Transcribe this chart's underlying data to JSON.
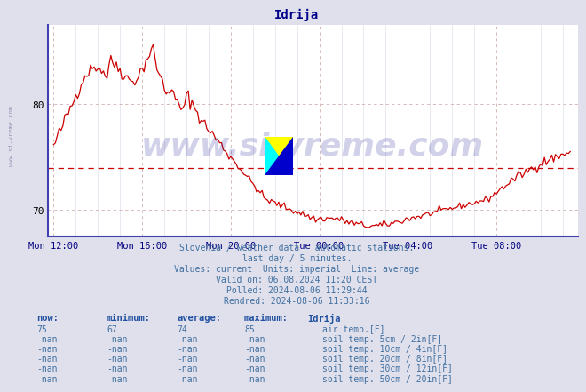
{
  "title": "Idrija",
  "title_color": "#00008B",
  "bg_color": "#e0e0ec",
  "plot_bg_color": "#ffffff",
  "line_color": "#cc0000",
  "axis_color": "#4040b0",
  "average_line_value": 74,
  "average_line_color": "#cc0000",
  "ylim_min": 67.5,
  "ylim_max": 87.5,
  "yticks": [
    70,
    80
  ],
  "xtick_labels": [
    "Mon 12:00",
    "Mon 16:00",
    "Mon 20:00",
    "Tue 00:00",
    "Tue 04:00",
    "Tue 08:00"
  ],
  "xtick_positions": [
    0,
    48,
    96,
    144,
    192,
    240
  ],
  "n_points": 281,
  "watermark_text": "www.si-vreme.com",
  "watermark_color": "#00008B",
  "watermark_alpha": 0.18,
  "info_lines": [
    "Slovenia / weather data - automatic stations.",
    "last day / 5 minutes.",
    "Values: current  Units: imperial  Line: average",
    "Valid on: 06.08.2024 11:20 CEST",
    "Polled: 2024-08-06 11:29:44",
    "Rendred: 2024-08-06 11:33:16"
  ],
  "info_color": "#4070a0",
  "table_headers": [
    "now:",
    "minimum:",
    "average:",
    "maximum:",
    "Idrija"
  ],
  "table_rows": [
    {
      "now": "75",
      "minimum": "67",
      "average": "74",
      "maximum": "85",
      "color": "#cc0000",
      "label": "air temp.[F]"
    },
    {
      "now": "-nan",
      "minimum": "-nan",
      "average": "-nan",
      "maximum": "-nan",
      "color": "#c89090",
      "label": "soil temp. 5cm / 2in[F]"
    },
    {
      "now": "-nan",
      "minimum": "-nan",
      "average": "-nan",
      "maximum": "-nan",
      "color": "#c87820",
      "label": "soil temp. 10cm / 4in[F]"
    },
    {
      "now": "-nan",
      "minimum": "-nan",
      "average": "-nan",
      "maximum": "-nan",
      "color": "#b07810",
      "label": "soil temp. 20cm / 8in[F]"
    },
    {
      "now": "-nan",
      "minimum": "-nan",
      "average": "-nan",
      "maximum": "-nan",
      "color": "#607040",
      "label": "soil temp. 30cm / 12in[F]"
    },
    {
      "now": "-nan",
      "minimum": "-nan",
      "average": "-nan",
      "maximum": "-nan",
      "color": "#7a3808",
      "label": "soil temp. 50cm / 20in[F]"
    }
  ],
  "logo_yellow": "#ffff00",
  "logo_cyan": "#00ffff",
  "logo_blue": "#0000cc",
  "vgrid_major_color": "#d0b0b0",
  "vgrid_minor_color": "#d8d8e8",
  "hgrid_color": "#d0b0b0",
  "left_label": "www.si-vreme.com",
  "left_label_color": "#7070a0"
}
